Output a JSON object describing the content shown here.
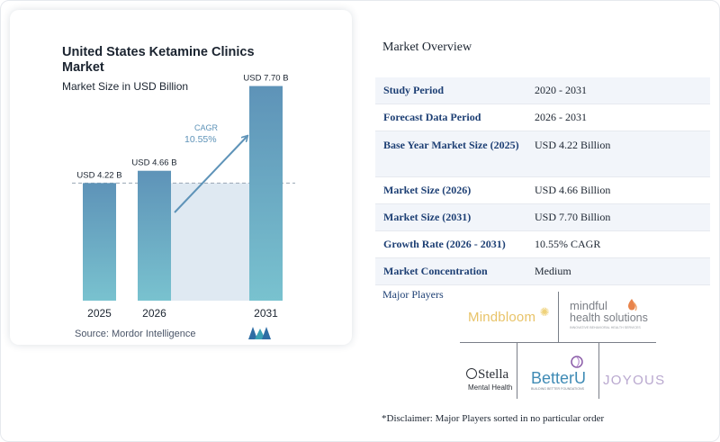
{
  "chart": {
    "title": "United States Ketamine Clinics Market",
    "subtitle": "Market Size in USD Billion",
    "source": "Source: Mordor Intelligence",
    "cagr_label": "CAGR",
    "cagr_value": "10.55%"
  },
  "chart_data": {
    "type": "bar",
    "title": "United States Ketamine Clinics Market",
    "subtitle": "Market Size in USD Billion",
    "categories": [
      "2025",
      "2026",
      "2031"
    ],
    "values": [
      4.22,
      4.66,
      7.7
    ],
    "data_labels": [
      "USD 4.22 B",
      "USD 4.66 B",
      "USD 7.70 B"
    ],
    "annotation": "CAGR 10.55%",
    "ylim": [
      0,
      8.3
    ],
    "grid": false,
    "reference_line_value": 4.22,
    "colors": {
      "bar_top": "#5e93b8",
      "bar_bottom": "#79c2cf",
      "band": "#dfe9f2",
      "arrow": "#5e93b8"
    }
  },
  "overview": {
    "title": "Market Overview",
    "rows": [
      {
        "label": "Study Period",
        "value": "2020 - 2031"
      },
      {
        "label": "Forecast Data Period",
        "value": "2026 - 2031"
      },
      {
        "label": "Base Year Market Size (2025)",
        "value": "USD 4.22 Billion"
      },
      {
        "label": "Market Size (2026)",
        "value": "USD 4.66 Billion"
      },
      {
        "label": "Market Size (2031)",
        "value": "USD 7.70 Billion"
      },
      {
        "label": "Growth Rate (2026 - 2031)",
        "value": "10.55% CAGR"
      },
      {
        "label": "Market Concentration",
        "value": "Medium"
      }
    ]
  },
  "players": {
    "title": "Major Players",
    "logos": {
      "mindbloom": "Mindbloom",
      "mindful_1": "mindful",
      "mindful_2": "health solutions",
      "mindful_tagline": "INNOVATIVE BEHAVIORAL HEALTH SERVICES",
      "stella_1": "Stella",
      "stella_2": "Mental Health",
      "betteru": "BetterU",
      "betteru_tagline": "BUILDING BETTER FOUNDATIONS",
      "joyous": "JOYOUS"
    },
    "disclaimer": "*Disclaimer: Major Players sorted in no particular order"
  }
}
